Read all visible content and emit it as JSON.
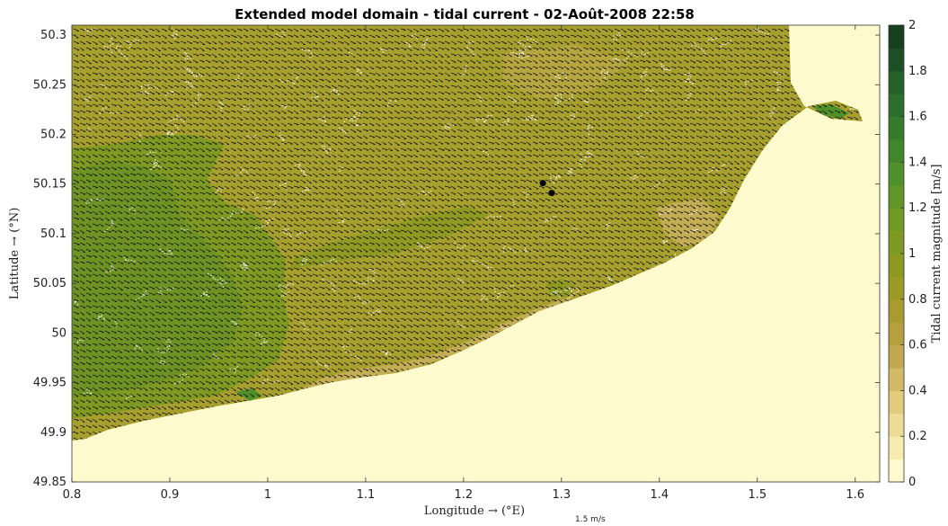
{
  "chart_data": {
    "type": "heatmap",
    "title": "Extended model domain - tidal current - 02-Août-2008 22:58",
    "xlabel": "Longitude → (°E)",
    "ylabel": "Latitude → (°N)",
    "colorbar_label": "Tidal current magnitude [m/s]",
    "xlim": [
      0.8,
      1.625
    ],
    "ylim": [
      49.85,
      50.31
    ],
    "clim": [
      0,
      2
    ],
    "x_ticks": [
      "0.8",
      "0.9",
      "1",
      "1.1",
      "1.2",
      "1.3",
      "1.4",
      "1.5",
      "1.6"
    ],
    "x_tick_values": [
      0.8,
      0.9,
      1.0,
      1.1,
      1.2,
      1.3,
      1.4,
      1.5,
      1.6
    ],
    "y_ticks": [
      "49.85",
      "49.9",
      "49.95",
      "50",
      "50.05",
      "50.1",
      "50.15",
      "50.2",
      "50.25",
      "50.3"
    ],
    "y_tick_values": [
      49.85,
      49.9,
      49.95,
      50.0,
      50.05,
      50.1,
      50.15,
      50.2,
      50.25,
      50.3
    ],
    "colorbar_ticks": [
      "0",
      "0.2",
      "0.4",
      "0.6",
      "0.8",
      "1",
      "1.2",
      "1.4",
      "1.6",
      "1.8",
      "2"
    ],
    "colorbar_tick_values": [
      0,
      0.2,
      0.4,
      0.6,
      0.8,
      1.0,
      1.2,
      1.4,
      1.6,
      1.8,
      2.0
    ],
    "colorbar_levels": [
      "#fffacd",
      "#f7ecb0",
      "#ecdc94",
      "#e0cc7c",
      "#d2ba66",
      "#c2a84e",
      "#b6a03e",
      "#a89c2e",
      "#9a9a24",
      "#8c9a22",
      "#7e9a22",
      "#6f9a24",
      "#5f9626",
      "#4f902a",
      "#42862c",
      "#367a2c",
      "#2c6e2a",
      "#246028",
      "#1c5024",
      "#16401e"
    ],
    "current_direction": "east-southeast",
    "reference_vector_label": "1.5 m/s",
    "markers": [
      {
        "lon": 1.281,
        "lat": 50.151
      },
      {
        "lon": 1.29,
        "lat": 50.141
      }
    ]
  },
  "colors": {
    "land": "#fffacd",
    "sea_base": "#a8a02e",
    "sea_light": "#c4ae55",
    "sea_mid": "#8f9a22",
    "sea_dark": "#6f9224",
    "arrows": "#111111",
    "contours": "#ffffff"
  }
}
